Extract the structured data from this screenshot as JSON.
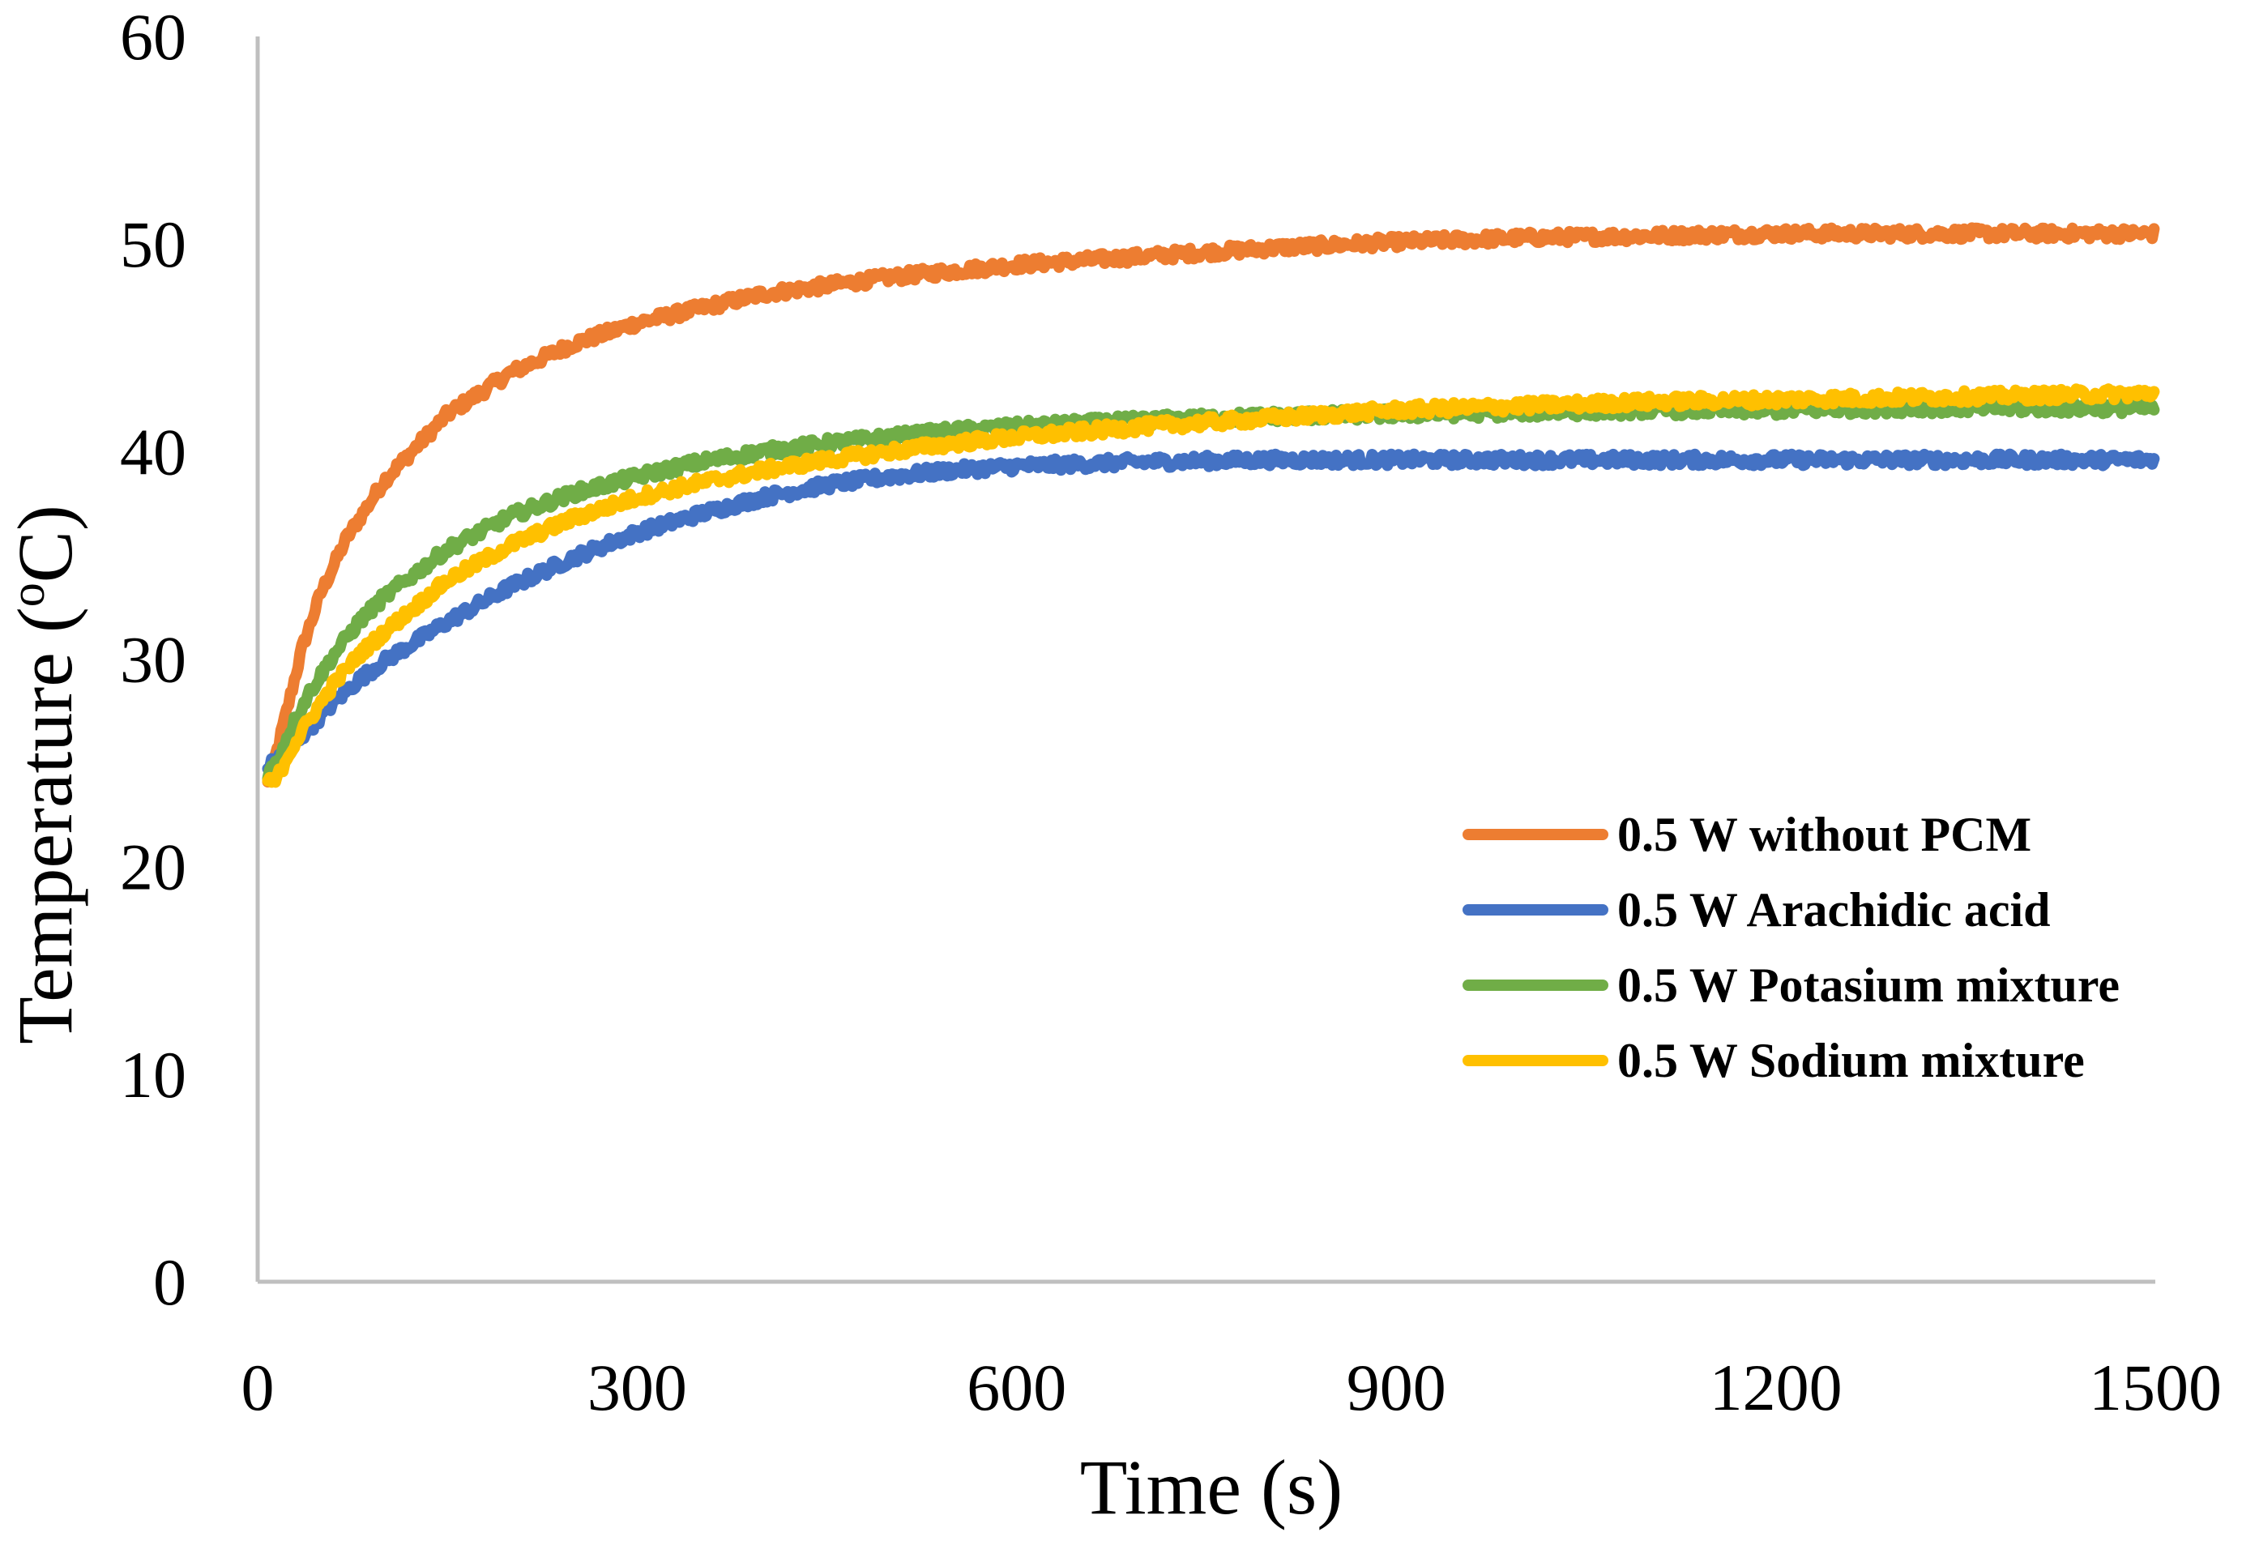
{
  "chart_data": {
    "type": "line",
    "title": "",
    "xlabel": "Time (s)",
    "ylabel_main": "Temperature (",
    "ylabel_sup": "o",
    "ylabel_tail": "C)",
    "xlim": [
      0,
      1500
    ],
    "ylim": [
      0,
      60
    ],
    "xticks": [
      0,
      300,
      600,
      900,
      1200,
      1500
    ],
    "yticks": [
      0,
      10,
      20,
      30,
      40,
      50,
      60
    ],
    "xtick_labels": [
      "0",
      "300",
      "600",
      "900",
      "1200",
      "1500"
    ],
    "ytick_labels": [
      "0",
      "10",
      "20",
      "30",
      "40",
      "50",
      "60"
    ],
    "grid": false,
    "legend_position": "right-middle",
    "series": [
      {
        "name": "0.5 W without PCM",
        "color": "#ED7D31",
        "x": [
          8,
          15,
          25,
          35,
          50,
          70,
          100,
          150,
          200,
          250,
          300,
          400,
          500,
          600,
          700,
          800,
          900,
          1000,
          1100,
          1200,
          1300,
          1400,
          1500
        ],
        "y": [
          24.0,
          25.5,
          28.0,
          30.5,
          33.2,
          35.8,
          38.6,
          41.8,
          43.8,
          45.2,
          46.2,
          47.6,
          48.4,
          49.0,
          49.4,
          49.8,
          50.1,
          50.3,
          50.4,
          50.5,
          50.5,
          50.5,
          50.5
        ]
      },
      {
        "name": "0.5 W Arachidic acid",
        "color": "#4472C4",
        "x": [
          8,
          20,
          40,
          60,
          80,
          100,
          150,
          200,
          250,
          300,
          350,
          400,
          450,
          500,
          550,
          600,
          650,
          700,
          800,
          900,
          1000,
          1100,
          1200,
          1300,
          1400,
          1500
        ],
        "y": [
          24.8,
          25.4,
          26.6,
          27.9,
          29.0,
          29.9,
          31.8,
          33.5,
          34.9,
          36.1,
          37.0,
          37.8,
          38.4,
          38.8,
          39.1,
          39.3,
          39.4,
          39.5,
          39.6,
          39.6,
          39.6,
          39.6,
          39.6,
          39.6,
          39.6,
          39.6
        ]
      },
      {
        "name": "0.5 W Potasium mixture",
        "color": "#70AD47",
        "x": [
          8,
          15,
          25,
          40,
          60,
          80,
          100,
          150,
          200,
          250,
          300,
          350,
          400,
          450,
          500,
          550,
          600,
          700,
          800,
          900,
          1000,
          1100,
          1200,
          1300,
          1400,
          1500
        ],
        "y": [
          24.5,
          25.0,
          26.5,
          28.3,
          30.2,
          31.8,
          33.0,
          35.3,
          36.9,
          38.0,
          38.8,
          39.5,
          40.0,
          40.4,
          40.7,
          41.0,
          41.2,
          41.5,
          41.7,
          41.8,
          41.9,
          42.0,
          42.0,
          42.1,
          42.1,
          42.1
        ]
      },
      {
        "name": "0.5 W Sodium mixture",
        "color": "#FFC000",
        "x": [
          8,
          15,
          25,
          40,
          60,
          80,
          100,
          150,
          200,
          250,
          300,
          350,
          400,
          450,
          500,
          550,
          600,
          700,
          800,
          900,
          1000,
          1100,
          1200,
          1300,
          1400,
          1500
        ],
        "y": [
          24.0,
          24.2,
          25.5,
          27.0,
          28.8,
          30.2,
          31.3,
          33.8,
          35.5,
          36.8,
          37.8,
          38.5,
          39.1,
          39.6,
          40.0,
          40.4,
          40.7,
          41.2,
          41.6,
          42.0,
          42.2,
          42.4,
          42.5,
          42.6,
          42.7,
          42.8
        ]
      }
    ]
  }
}
